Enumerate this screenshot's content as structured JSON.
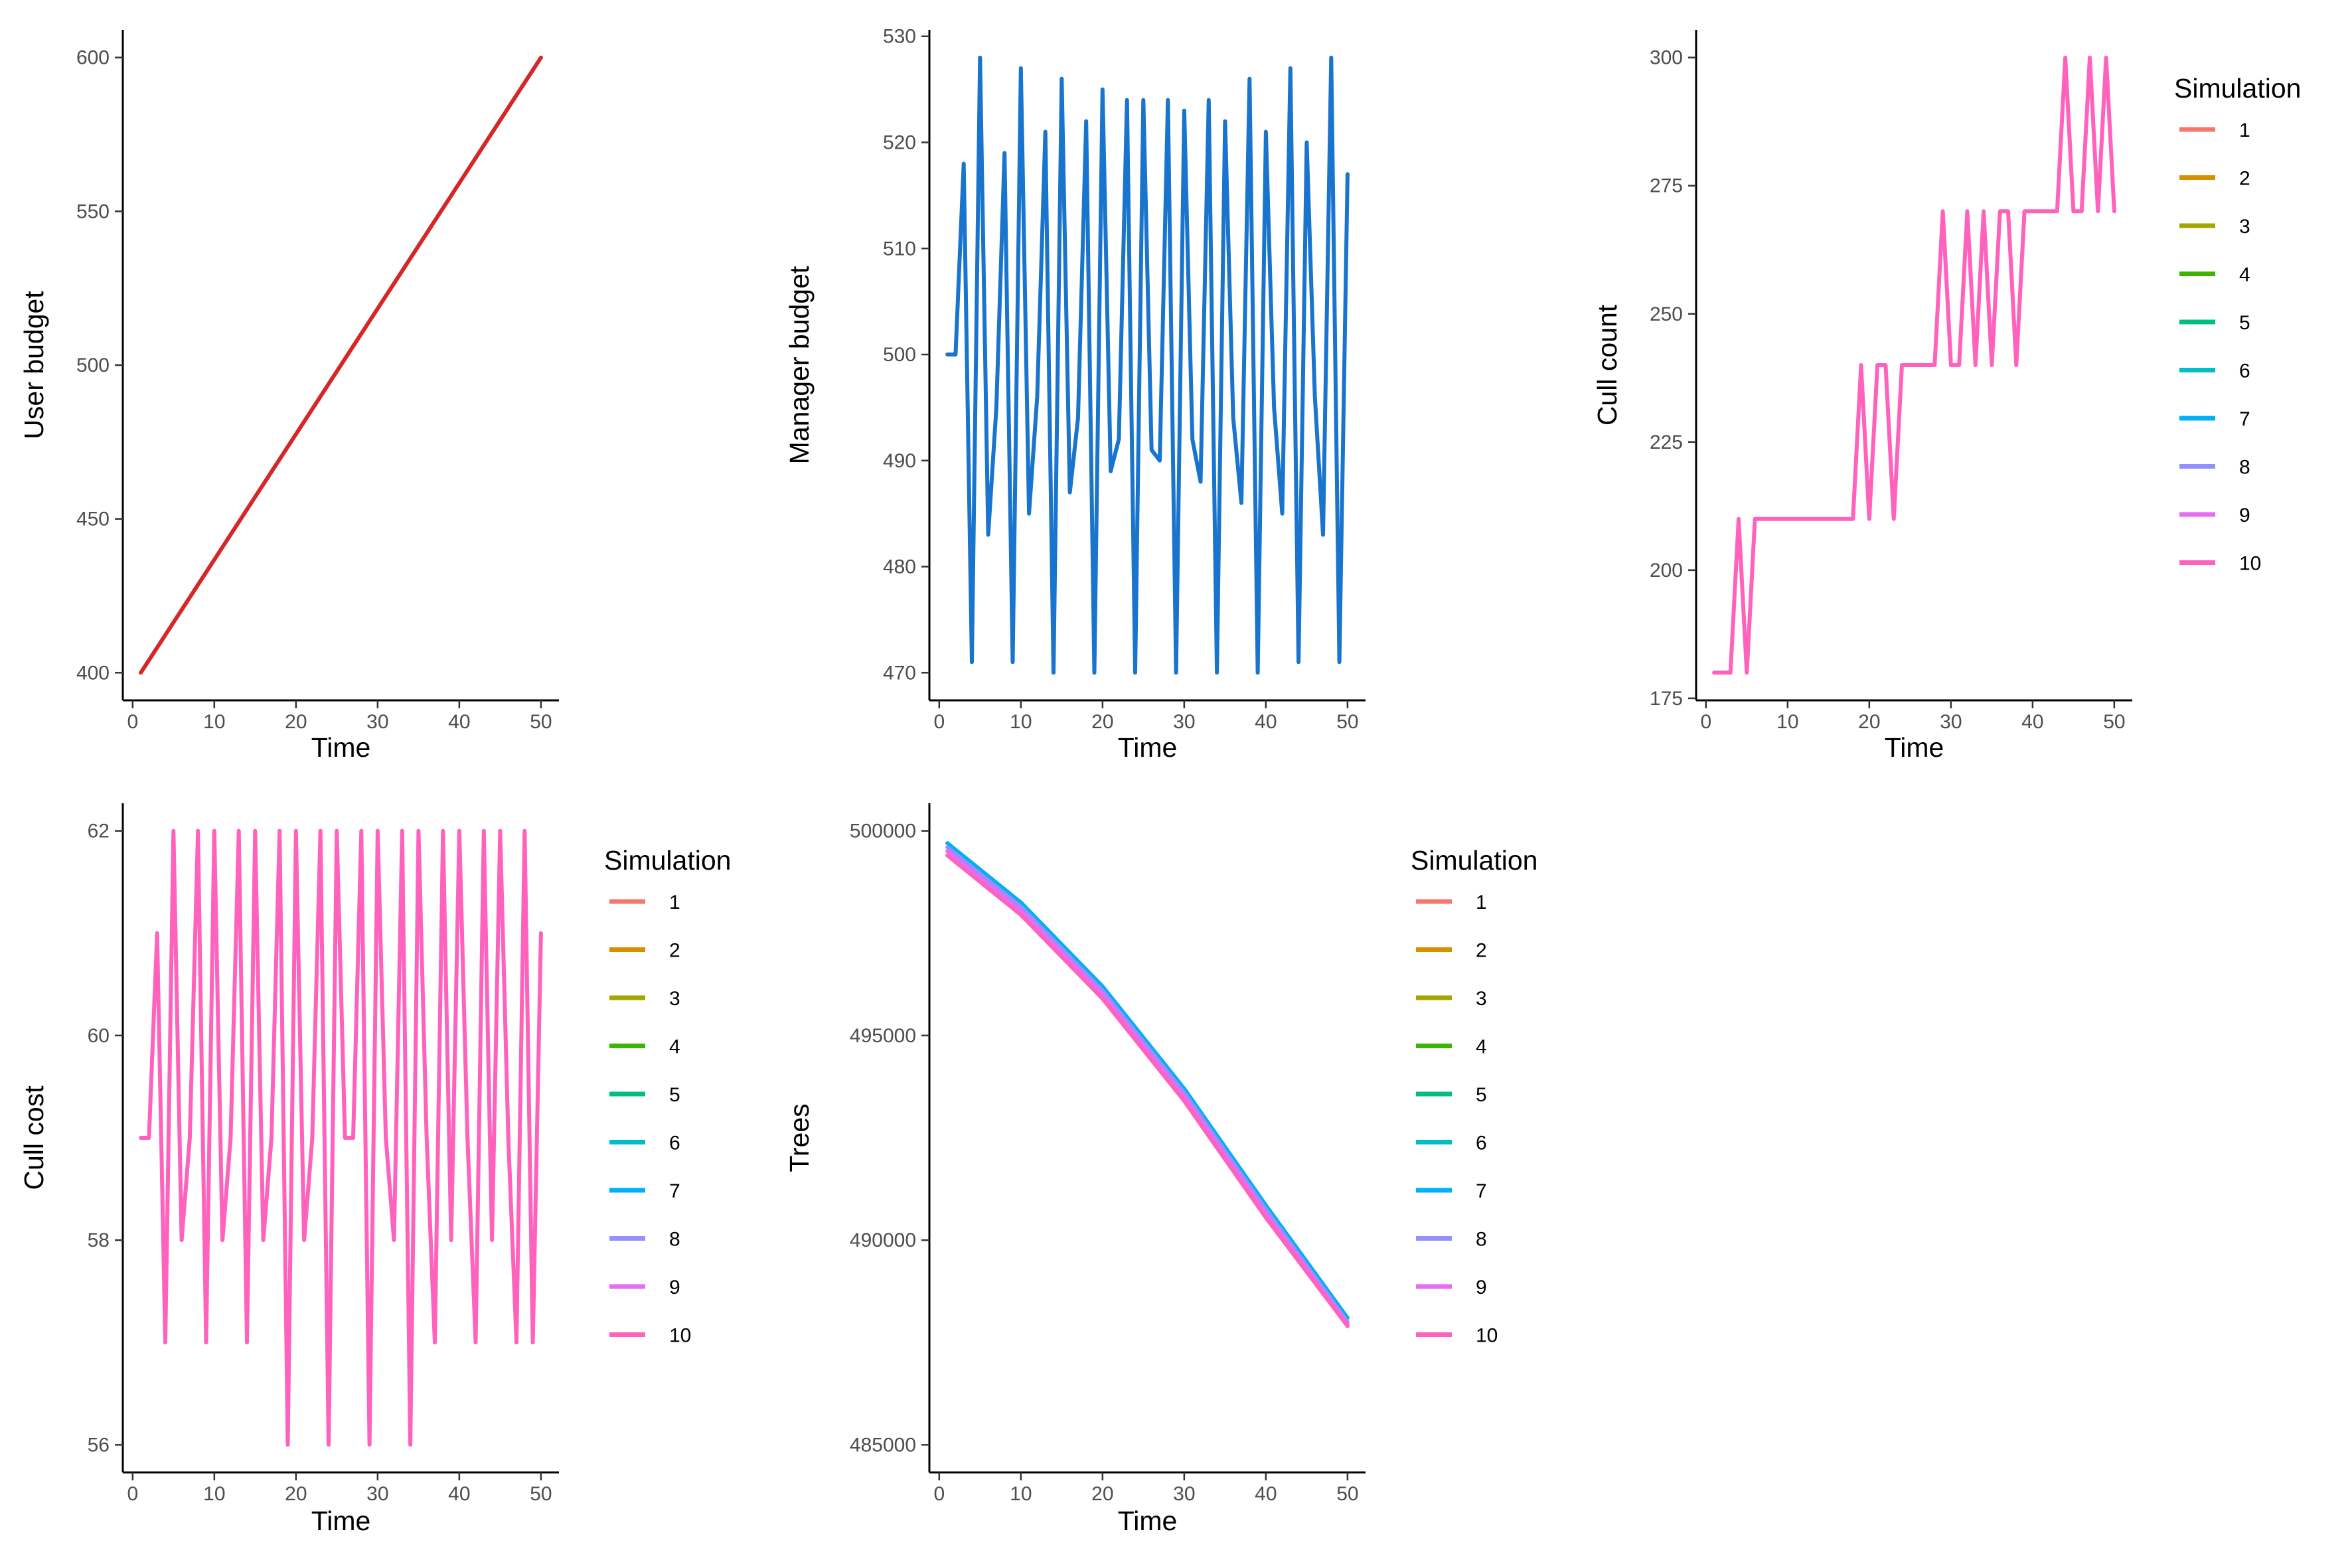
{
  "palette": [
    "#F8766D",
    "#D89000",
    "#A3A500",
    "#39B600",
    "#00BF7D",
    "#00BFC4",
    "#00B0F6",
    "#9590FF",
    "#E76BF3",
    "#FF62BC"
  ],
  "chart_data": [
    {
      "id": "user-budget",
      "type": "line",
      "xlabel": "Time",
      "ylabel": "User budget",
      "xlim": [
        1,
        50
      ],
      "ylim": [
        400,
        600
      ],
      "xticks": [
        0,
        10,
        20,
        30,
        40,
        50
      ],
      "xtick_labels": [
        "0",
        "10",
        "20",
        "30",
        "40",
        "50"
      ],
      "yticks": [
        400,
        450,
        500,
        550,
        600
      ],
      "ytick_labels": [
        "400",
        "450",
        "500",
        "550",
        "600"
      ],
      "legend": false,
      "series": [
        {
          "color": "#D62728",
          "x": [
            1,
            50
          ],
          "y": [
            400,
            600
          ]
        }
      ]
    },
    {
      "id": "manager-budget",
      "type": "line",
      "xlabel": "Time",
      "ylabel": "Manager budget",
      "xlim": [
        1,
        50
      ],
      "ylim": [
        470,
        528
      ],
      "xticks": [
        0,
        10,
        20,
        30,
        40,
        50
      ],
      "xtick_labels": [
        "0",
        "10",
        "20",
        "30",
        "40",
        "50"
      ],
      "yticks": [
        470,
        480,
        490,
        500,
        510,
        520,
        530
      ],
      "ytick_labels": [
        "470",
        "480",
        "490",
        "500",
        "510",
        "520",
        "530"
      ],
      "legend": false,
      "series": [
        {
          "color": "#1874CD",
          "x": [
            1,
            2,
            3,
            4,
            5,
            6,
            7,
            8,
            9,
            10,
            11,
            12,
            13,
            14,
            15,
            16,
            17,
            18,
            19,
            20,
            21,
            22,
            23,
            24,
            25,
            26,
            27,
            28,
            29,
            30,
            31,
            32,
            33,
            34,
            35,
            36,
            37,
            38,
            39,
            40,
            41,
            42,
            43,
            44,
            45,
            46,
            47,
            48,
            49,
            50
          ],
          "y": [
            500,
            500,
            518,
            471,
            528,
            483,
            495,
            519,
            471,
            527,
            485,
            496,
            521,
            470,
            526,
            487,
            494,
            522,
            470,
            525,
            489,
            492,
            524,
            470,
            524,
            491,
            490,
            524,
            470,
            523,
            492,
            488,
            524,
            470,
            522,
            494,
            486,
            526,
            470,
            521,
            495,
            485,
            527,
            471,
            520,
            496,
            483,
            528,
            471,
            517
          ]
        }
      ]
    },
    {
      "id": "cull-count",
      "type": "line",
      "xlabel": "Time",
      "ylabel": "Cull count",
      "xlim": [
        1,
        50
      ],
      "ylim": [
        180,
        300
      ],
      "xticks": [
        0,
        10,
        20,
        30,
        40,
        50
      ],
      "xtick_labels": [
        "0",
        "10",
        "20",
        "30",
        "40",
        "50"
      ],
      "yticks": [
        175,
        200,
        225,
        250,
        275,
        300
      ],
      "ytick_labels": [
        "175",
        "200",
        "225",
        "250",
        "275",
        "300"
      ],
      "legend": true,
      "legend_title": "Simulation",
      "legend_labels": [
        "1",
        "2",
        "3",
        "4",
        "5",
        "6",
        "7",
        "8",
        "9",
        "10"
      ],
      "series": [
        {
          "color": "#FF62BC",
          "x": [
            1,
            2,
            3,
            4,
            5,
            6,
            7,
            8,
            9,
            10,
            11,
            12,
            13,
            14,
            15,
            16,
            17,
            18,
            19,
            20,
            21,
            22,
            23,
            24,
            25,
            26,
            27,
            28,
            29,
            30,
            31,
            32,
            33,
            34,
            35,
            36,
            37,
            38,
            39,
            40,
            41,
            42,
            43,
            44,
            45,
            46,
            47,
            48,
            49,
            50
          ],
          "y": [
            180,
            180,
            180,
            210,
            180,
            210,
            210,
            210,
            210,
            210,
            210,
            210,
            210,
            210,
            210,
            210,
            210,
            210,
            240,
            210,
            240,
            240,
            210,
            240,
            240,
            240,
            240,
            240,
            270,
            240,
            240,
            270,
            240,
            270,
            240,
            270,
            270,
            240,
            270,
            270,
            270,
            270,
            270,
            300,
            270,
            270,
            300,
            270,
            300,
            270
          ]
        }
      ]
    },
    {
      "id": "cull-cost",
      "type": "line",
      "xlabel": "Time",
      "ylabel": "Cull cost",
      "xlim": [
        1,
        50
      ],
      "ylim": [
        56,
        62
      ],
      "xticks": [
        0,
        10,
        20,
        30,
        40,
        50
      ],
      "xtick_labels": [
        "0",
        "10",
        "20",
        "30",
        "40",
        "50"
      ],
      "yticks": [
        56,
        58,
        60,
        62
      ],
      "ytick_labels": [
        "56",
        "58",
        "60",
        "62"
      ],
      "legend": true,
      "legend_title": "Simulation",
      "legend_labels": [
        "1",
        "2",
        "3",
        "4",
        "5",
        "6",
        "7",
        "8",
        "9",
        "10"
      ],
      "series": [
        {
          "color": "#FF62BC",
          "x": [
            1,
            2,
            3,
            4,
            5,
            6,
            7,
            8,
            9,
            10,
            11,
            12,
            13,
            14,
            15,
            16,
            17,
            18,
            19,
            20,
            21,
            22,
            23,
            24,
            25,
            26,
            27,
            28,
            29,
            30,
            31,
            32,
            33,
            34,
            35,
            36,
            37,
            38,
            39,
            40,
            41,
            42,
            43,
            44,
            45,
            46,
            47,
            48,
            49,
            50
          ],
          "y": [
            59,
            59,
            61,
            57,
            62,
            58,
            59,
            62,
            57,
            62,
            58,
            59,
            62,
            57,
            62,
            58,
            59,
            62,
            56,
            62,
            58,
            59,
            62,
            56,
            62,
            59,
            59,
            62,
            56,
            62,
            59,
            58,
            62,
            56,
            62,
            59,
            57,
            62,
            58,
            62,
            59,
            57,
            62,
            58,
            62,
            59,
            57,
            62,
            57,
            61
          ]
        }
      ]
    },
    {
      "id": "trees",
      "type": "line",
      "xlabel": "Time",
      "ylabel": "Trees",
      "xlim": [
        1,
        50
      ],
      "ylim": [
        485000,
        500000
      ],
      "xticks": [
        0,
        10,
        20,
        30,
        40,
        50
      ],
      "xtick_labels": [
        "0",
        "10",
        "20",
        "30",
        "40",
        "50"
      ],
      "yticks": [
        485000,
        490000,
        495000,
        500000
      ],
      "ytick_labels": [
        "485000",
        "490000",
        "495000",
        "500000"
      ],
      "legend": true,
      "legend_title": "Simulation",
      "legend_labels": [
        "1",
        "2",
        "3",
        "4",
        "5",
        "6",
        "7",
        "8",
        "9",
        "10"
      ],
      "series": [
        {
          "color": "#00B0F6",
          "x": [
            1,
            10,
            20,
            30,
            40,
            50
          ],
          "y": [
            499700,
            498250,
            496200,
            493700,
            490850,
            488100
          ]
        },
        {
          "color": "#9590FF",
          "x": [
            1,
            10,
            20,
            30,
            40,
            50
          ],
          "y": [
            499600,
            498150,
            496100,
            493600,
            490750,
            488000
          ]
        },
        {
          "color": "#E76BF3",
          "x": [
            1,
            10,
            20,
            30,
            40,
            50
          ],
          "y": [
            499500,
            498050,
            496000,
            493500,
            490650,
            487950
          ]
        },
        {
          "color": "#FF62BC",
          "x": [
            1,
            10,
            20,
            30,
            40,
            50
          ],
          "y": [
            499400,
            497950,
            495900,
            493400,
            490550,
            487900
          ]
        }
      ]
    }
  ]
}
